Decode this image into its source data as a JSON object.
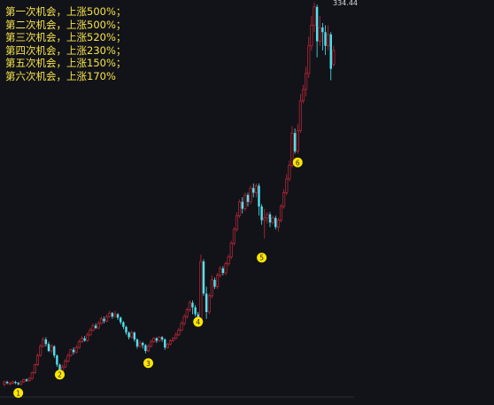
{
  "annotations": [
    "第一次机会，上涨500%；",
    "第二次机会，上涨500%；",
    "第三次机会，上涨520%；",
    "第四次机会，上涨230%；",
    "第五次机会，上涨150%；",
    "第六次机会，上涨170%"
  ],
  "colors": {
    "background": "#121318",
    "up": "#c0283a",
    "down": "#4fe3ee",
    "marker": "#ffe600",
    "annotation_text": "#f5e24a",
    "peak_label": "#d8d8e0"
  },
  "chart_data": {
    "type": "candlestick",
    "title": "",
    "xlabel": "",
    "ylabel": "",
    "peak_label": "334.44",
    "ylim": [
      0,
      340
    ],
    "markers": [
      {
        "label": "1",
        "index": 5,
        "value": 2
      },
      {
        "label": "2",
        "index": 20,
        "value": 18
      },
      {
        "label": "3",
        "index": 52,
        "value": 28
      },
      {
        "label": "4",
        "index": 70,
        "value": 64
      },
      {
        "label": "5",
        "index": 93,
        "value": 120
      },
      {
        "label": "6",
        "index": 106,
        "value": 203
      }
    ],
    "candles": [
      [
        5,
        7,
        3,
        8
      ],
      [
        7,
        6,
        5,
        8
      ],
      [
        6,
        6,
        4,
        7
      ],
      [
        6,
        7,
        5,
        8
      ],
      [
        7,
        6,
        5,
        8
      ],
      [
        6,
        5,
        4,
        7
      ],
      [
        5,
        7,
        4,
        8
      ],
      [
        7,
        9,
        6,
        10
      ],
      [
        9,
        8,
        7,
        10
      ],
      [
        8,
        10,
        7,
        11
      ],
      [
        10,
        15,
        9,
        16
      ],
      [
        15,
        22,
        14,
        23
      ],
      [
        22,
        30,
        21,
        32
      ],
      [
        30,
        38,
        29,
        40
      ],
      [
        38,
        44,
        37,
        46
      ],
      [
        44,
        40,
        38,
        46
      ],
      [
        40,
        34,
        33,
        42
      ],
      [
        34,
        38,
        32,
        40
      ],
      [
        38,
        30,
        28,
        39
      ],
      [
        30,
        22,
        20,
        31
      ],
      [
        22,
        16,
        15,
        23
      ],
      [
        16,
        20,
        15,
        22
      ],
      [
        20,
        25,
        19,
        27
      ],
      [
        25,
        30,
        24,
        32
      ],
      [
        30,
        35,
        29,
        36
      ],
      [
        35,
        33,
        31,
        37
      ],
      [
        33,
        37,
        32,
        39
      ],
      [
        37,
        42,
        36,
        44
      ],
      [
        42,
        45,
        41,
        47
      ],
      [
        45,
        43,
        42,
        47
      ],
      [
        43,
        48,
        42,
        50
      ],
      [
        48,
        52,
        47,
        54
      ],
      [
        52,
        56,
        51,
        58
      ],
      [
        56,
        54,
        53,
        58
      ],
      [
        54,
        58,
        53,
        60
      ],
      [
        58,
        62,
        57,
        64
      ],
      [
        62,
        60,
        58,
        64
      ],
      [
        60,
        64,
        59,
        66
      ],
      [
        64,
        67,
        63,
        69
      ],
      [
        67,
        64,
        62,
        68
      ],
      [
        64,
        66,
        63,
        69
      ],
      [
        66,
        63,
        61,
        67
      ],
      [
        63,
        59,
        57,
        64
      ],
      [
        59,
        55,
        53,
        60
      ],
      [
        55,
        50,
        48,
        56
      ],
      [
        50,
        46,
        44,
        51
      ],
      [
        46,
        50,
        45,
        52
      ],
      [
        50,
        44,
        42,
        51
      ],
      [
        44,
        38,
        36,
        45
      ],
      [
        38,
        41,
        37,
        43
      ],
      [
        41,
        39,
        36,
        42
      ],
      [
        39,
        34,
        32,
        40
      ],
      [
        34,
        38,
        33,
        40
      ],
      [
        38,
        42,
        37,
        44
      ],
      [
        42,
        45,
        41,
        46
      ],
      [
        45,
        43,
        41,
        46
      ],
      [
        43,
        46,
        42,
        47
      ],
      [
        46,
        44,
        42,
        47
      ],
      [
        44,
        37,
        35,
        45
      ],
      [
        37,
        40,
        36,
        41
      ],
      [
        40,
        43,
        39,
        44
      ],
      [
        43,
        45,
        42,
        46
      ],
      [
        45,
        48,
        44,
        50
      ],
      [
        48,
        52,
        47,
        54
      ],
      [
        52,
        58,
        51,
        60
      ],
      [
        58,
        64,
        56,
        66
      ],
      [
        64,
        70,
        62,
        72
      ],
      [
        70,
        76,
        68,
        78
      ],
      [
        76,
        72,
        66,
        78
      ],
      [
        72,
        66,
        64,
        74
      ],
      [
        66,
        60,
        58,
        68
      ],
      [
        60,
        112,
        58,
        118
      ],
      [
        112,
        84,
        82,
        114
      ],
      [
        84,
        68,
        62,
        90
      ],
      [
        68,
        82,
        66,
        84
      ],
      [
        82,
        96,
        80,
        100
      ],
      [
        96,
        90,
        88,
        98
      ],
      [
        90,
        100,
        88,
        102
      ],
      [
        100,
        106,
        98,
        108
      ],
      [
        106,
        102,
        100,
        108
      ],
      [
        102,
        110,
        100,
        112
      ],
      [
        110,
        116,
        108,
        118
      ],
      [
        116,
        128,
        114,
        130
      ],
      [
        128,
        140,
        126,
        142
      ],
      [
        140,
        152,
        138,
        155
      ],
      [
        152,
        164,
        150,
        166
      ],
      [
        164,
        158,
        154,
        168
      ],
      [
        158,
        170,
        156,
        172
      ],
      [
        170,
        164,
        160,
        172
      ],
      [
        164,
        176,
        162,
        178
      ],
      [
        176,
        172,
        168,
        180
      ],
      [
        172,
        178,
        168,
        180
      ],
      [
        178,
        160,
        152,
        180
      ],
      [
        160,
        148,
        144,
        162
      ],
      [
        148,
        150,
        132,
        158
      ],
      [
        150,
        153,
        145,
        155
      ],
      [
        153,
        146,
        142,
        155
      ],
      [
        146,
        150,
        144,
        152
      ],
      [
        150,
        142,
        140,
        152
      ],
      [
        142,
        148,
        138,
        150
      ],
      [
        148,
        160,
        146,
        162
      ],
      [
        160,
        172,
        158,
        175
      ],
      [
        172,
        184,
        170,
        188
      ],
      [
        184,
        196,
        182,
        200
      ],
      [
        196,
        224,
        194,
        230
      ],
      [
        224,
        208,
        206,
        228
      ],
      [
        208,
        226,
        206,
        232
      ],
      [
        226,
        252,
        224,
        258
      ],
      [
        252,
        262,
        250,
        266
      ],
      [
        262,
        276,
        256,
        282
      ],
      [
        276,
        300,
        272,
        308
      ],
      [
        300,
        318,
        296,
        326
      ],
      [
        318,
        334,
        312,
        338
      ],
      [
        334,
        304,
        290,
        336
      ],
      [
        304,
        316,
        300,
        326
      ],
      [
        316,
        312,
        296,
        320
      ],
      [
        312,
        300,
        292,
        318
      ],
      [
        300,
        310,
        296,
        318
      ],
      [
        310,
        280,
        270,
        312
      ],
      [
        284,
        296,
        282,
        300
      ]
    ]
  }
}
